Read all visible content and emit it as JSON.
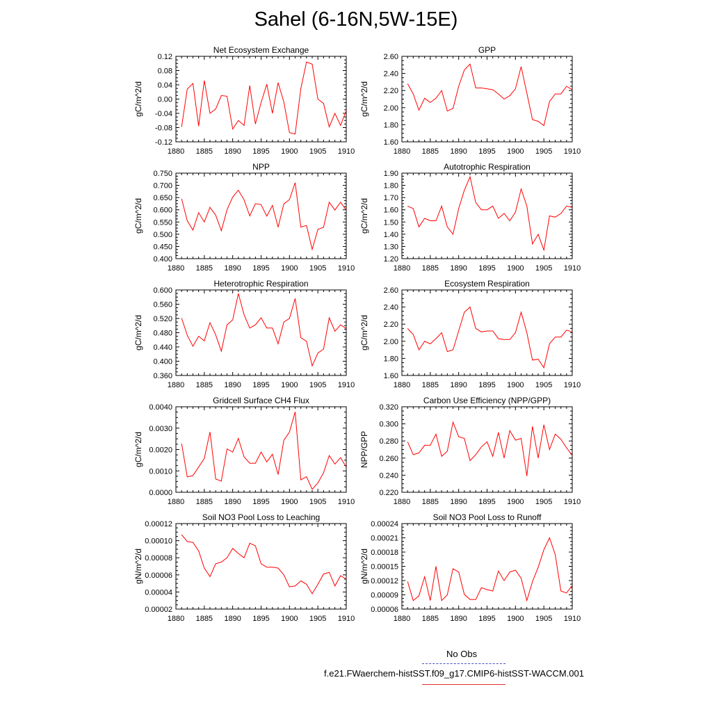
{
  "title": "Sahel (6-16N,5W-15E)",
  "colors": {
    "series": "#ff0000",
    "obs": "#4a4acf",
    "axis": "#000000"
  },
  "legend": {
    "items": [
      {
        "label": "No Obs",
        "style": "dashed",
        "color": "#4a4acf"
      },
      {
        "label": "f.e21.FWaerchem-histSST.f09_g17.CMIP6-histSST-WACCM.001",
        "style": "solid",
        "color": "#e03030"
      }
    ]
  },
  "chart_data": [
    {
      "type": "line",
      "title": "Net Ecosystem Exchange",
      "ylabel": "gC/m^2/d",
      "ylim": [
        -0.12,
        0.12
      ],
      "xlim": [
        1880,
        1910
      ],
      "yticks": [
        "-0.12",
        "-0.08",
        "-0.04",
        "0.00",
        "0.04",
        "0.08",
        "0.12"
      ],
      "xticks": [
        "1880",
        "1885",
        "1890",
        "1895",
        "1900",
        "1905",
        "1910"
      ],
      "series": [
        {
          "x_start": 1881,
          "values": [
            -0.078,
            0.028,
            0.044,
            -0.076,
            0.052,
            -0.04,
            -0.028,
            0.01,
            0.008,
            -0.084,
            -0.06,
            -0.074,
            0.038,
            -0.07,
            -0.01,
            0.042,
            -0.04,
            0.046,
            -0.008,
            -0.094,
            -0.098,
            0.03,
            0.104,
            0.098,
            0.0,
            -0.012,
            -0.078,
            -0.04,
            -0.074,
            -0.032
          ]
        }
      ]
    },
    {
      "type": "line",
      "title": "GPP",
      "ylabel": "gC/m^2/d",
      "ylim": [
        1.6,
        2.6
      ],
      "xlim": [
        1880,
        1910
      ],
      "yticks": [
        "1.60",
        "1.80",
        "2.00",
        "2.20",
        "2.40",
        "2.60"
      ],
      "xticks": [
        "1880",
        "1885",
        "1890",
        "1895",
        "1900",
        "1905",
        "1910"
      ],
      "series": [
        {
          "x_start": 1881,
          "values": [
            2.28,
            2.16,
            1.97,
            2.11,
            2.06,
            2.11,
            2.2,
            1.96,
            1.99,
            2.25,
            2.44,
            2.51,
            2.23,
            2.23,
            2.22,
            2.21,
            2.16,
            2.1,
            2.14,
            2.22,
            2.48,
            2.17,
            1.86,
            1.84,
            1.79,
            2.07,
            2.16,
            2.16,
            2.25,
            2.21
          ]
        }
      ]
    },
    {
      "type": "line",
      "title": "NPP",
      "ylabel": "gC/m^2/d",
      "ylim": [
        0.4,
        0.75
      ],
      "xlim": [
        1880,
        1910
      ],
      "yticks": [
        "0.400",
        "0.450",
        "0.500",
        "0.550",
        "0.600",
        "0.650",
        "0.700",
        "0.750"
      ],
      "xticks": [
        "1880",
        "1885",
        "1890",
        "1895",
        "1900",
        "1905",
        "1910"
      ],
      "series": [
        {
          "x_start": 1881,
          "values": [
            0.645,
            0.555,
            0.517,
            0.588,
            0.55,
            0.61,
            0.578,
            0.514,
            0.6,
            0.652,
            0.68,
            0.641,
            0.575,
            0.625,
            0.621,
            0.574,
            0.618,
            0.529,
            0.624,
            0.642,
            0.711,
            0.529,
            0.536,
            0.438,
            0.52,
            0.528,
            0.631,
            0.599,
            0.631,
            0.598
          ]
        }
      ]
    },
    {
      "type": "line",
      "title": "Autotrophic Respiration",
      "ylabel": "gC/m^2/d",
      "ylim": [
        1.2,
        1.9
      ],
      "xlim": [
        1880,
        1910
      ],
      "yticks": [
        "1.20",
        "1.30",
        "1.40",
        "1.50",
        "1.60",
        "1.70",
        "1.80",
        "1.90"
      ],
      "xticks": [
        "1880",
        "1885",
        "1890",
        "1895",
        "1900",
        "1905",
        "1910"
      ],
      "series": [
        {
          "x_start": 1881,
          "values": [
            1.63,
            1.61,
            1.46,
            1.53,
            1.51,
            1.51,
            1.63,
            1.46,
            1.4,
            1.61,
            1.76,
            1.87,
            1.66,
            1.6,
            1.6,
            1.63,
            1.53,
            1.57,
            1.51,
            1.58,
            1.77,
            1.63,
            1.32,
            1.4,
            1.27,
            1.55,
            1.54,
            1.57,
            1.63,
            1.62
          ]
        }
      ]
    },
    {
      "type": "line",
      "title": "Heterotrophic Respiration",
      "ylabel": "gC/m^2/d",
      "ylim": [
        0.36,
        0.6
      ],
      "xlim": [
        1880,
        1910
      ],
      "yticks": [
        "0.360",
        "0.400",
        "0.440",
        "0.480",
        "0.520",
        "0.560",
        "0.600"
      ],
      "xticks": [
        "1880",
        "1885",
        "1890",
        "1895",
        "1900",
        "1905",
        "1910"
      ],
      "series": [
        {
          "x_start": 1881,
          "values": [
            0.521,
            0.473,
            0.442,
            0.47,
            0.457,
            0.508,
            0.474,
            0.428,
            0.502,
            0.516,
            0.59,
            0.531,
            0.493,
            0.502,
            0.522,
            0.493,
            0.493,
            0.449,
            0.51,
            0.52,
            0.576,
            0.466,
            0.456,
            0.387,
            0.423,
            0.434,
            0.522,
            0.484,
            0.502,
            0.492
          ]
        }
      ]
    },
    {
      "type": "line",
      "title": "Ecosystem Respiration",
      "ylabel": "gC/m^2/d",
      "ylim": [
        1.6,
        2.6
      ],
      "xlim": [
        1880,
        1910
      ],
      "yticks": [
        "1.60",
        "1.80",
        "2.00",
        "2.20",
        "2.40",
        "2.60"
      ],
      "xticks": [
        "1880",
        "1885",
        "1890",
        "1895",
        "1900",
        "1905",
        "1910"
      ],
      "series": [
        {
          "x_start": 1881,
          "values": [
            2.15,
            2.08,
            1.9,
            2.0,
            1.97,
            2.03,
            2.1,
            1.88,
            1.9,
            2.12,
            2.34,
            2.4,
            2.15,
            2.11,
            2.12,
            2.12,
            2.03,
            2.02,
            2.02,
            2.1,
            2.34,
            2.1,
            1.78,
            1.79,
            1.69,
            1.97,
            2.05,
            2.05,
            2.13,
            2.11
          ]
        }
      ]
    },
    {
      "type": "line",
      "title": "Gridcell Surface CH4 Flux",
      "ylabel": "gC/m^2/d",
      "ylim": [
        0.0,
        0.004
      ],
      "xlim": [
        1880,
        1910
      ],
      "yticks": [
        "0.0000",
        "0.0010",
        "0.0020",
        "0.0030",
        "0.0040"
      ],
      "xticks": [
        "1880",
        "1885",
        "1890",
        "1895",
        "1900",
        "1905",
        "1910"
      ],
      "series": [
        {
          "x_start": 1881,
          "values": [
            0.00228,
            0.00072,
            0.00078,
            0.00118,
            0.00158,
            0.00282,
            0.00062,
            0.00052,
            0.00203,
            0.00188,
            0.00252,
            0.00166,
            0.00136,
            0.00136,
            0.00188,
            0.00142,
            0.00178,
            0.00083,
            0.00243,
            0.00282,
            0.00376,
            0.00058,
            0.00073,
            0.00014,
            0.00044,
            0.00091,
            0.00172,
            0.00132,
            0.00162,
            0.00118
          ]
        }
      ]
    },
    {
      "type": "line",
      "title": "Carbon Use Efficiency (NPP/GPP)",
      "ylabel": "NPP/GPP",
      "ylim": [
        0.22,
        0.32
      ],
      "xlim": [
        1880,
        1910
      ],
      "yticks": [
        "0.220",
        "0.240",
        "0.260",
        "0.280",
        "0.300",
        "0.320"
      ],
      "xticks": [
        "1880",
        "1885",
        "1890",
        "1895",
        "1900",
        "1905",
        "1910"
      ],
      "series": [
        {
          "x_start": 1881,
          "values": [
            0.279,
            0.264,
            0.266,
            0.275,
            0.275,
            0.288,
            0.262,
            0.268,
            0.302,
            0.285,
            0.283,
            0.257,
            0.264,
            0.273,
            0.279,
            0.262,
            0.29,
            0.26,
            0.292,
            0.281,
            0.283,
            0.239,
            0.297,
            0.26,
            0.299,
            0.27,
            0.288,
            0.282,
            0.272,
            0.263
          ]
        }
      ]
    },
    {
      "type": "line",
      "title": "Soil NO3 Pool Loss to Leaching",
      "ylabel": "gN/m^2/d",
      "ylim": [
        2e-05,
        0.00012
      ],
      "xlim": [
        1880,
        1910
      ],
      "yticks": [
        "0.00002",
        "0.00004",
        "0.00006",
        "0.00008",
        "0.00010",
        "0.00012"
      ],
      "xticks": [
        "1880",
        "1885",
        "1890",
        "1895",
        "1900",
        "1905",
        "1910"
      ],
      "series": [
        {
          "x_start": 1881,
          "values": [
            0.000107,
            9.9e-05,
            9.8e-05,
            8.8e-05,
            6.8e-05,
            5.8e-05,
            7.3e-05,
            7.5e-05,
            8e-05,
            9.1e-05,
            8.5e-05,
            8e-05,
            9.7e-05,
            9.4e-05,
            7.3e-05,
            6.9e-05,
            6.9e-05,
            6.8e-05,
            6e-05,
            4.6e-05,
            4.7e-05,
            5.3e-05,
            4.9e-05,
            3.8e-05,
            4.9e-05,
            6.1e-05,
            6.3e-05,
            4.7e-05,
            5.9e-05,
            5.5e-05
          ]
        }
      ]
    },
    {
      "type": "line",
      "title": "Soil NO3 Pool Loss to Runoff",
      "ylabel": "gN/m^2/d",
      "ylim": [
        6e-05,
        0.00024
      ],
      "xlim": [
        1880,
        1910
      ],
      "yticks": [
        "0.00006",
        "0.00009",
        "0.00012",
        "0.00015",
        "0.00018",
        "0.00021",
        "0.00024"
      ],
      "xticks": [
        "1880",
        "1885",
        "1890",
        "1895",
        "1900",
        "1905",
        "1910"
      ],
      "series": [
        {
          "x_start": 1881,
          "values": [
            0.000118,
            7.8e-05,
            8.8e-05,
            0.000128,
            7.8e-05,
            0.00015,
            7.8e-05,
            9e-05,
            0.000145,
            0.000138,
            9.1e-05,
            8e-05,
            8e-05,
            0.000105,
            0.000101,
            9.8e-05,
            0.00014,
            0.00012,
            0.000138,
            0.000142,
            0.000125,
            7.8e-05,
            0.000118,
            0.000148,
            0.000185,
            0.00021,
            0.000175,
            9.8e-05,
            9.4e-05,
            0.00011
          ]
        }
      ]
    }
  ]
}
